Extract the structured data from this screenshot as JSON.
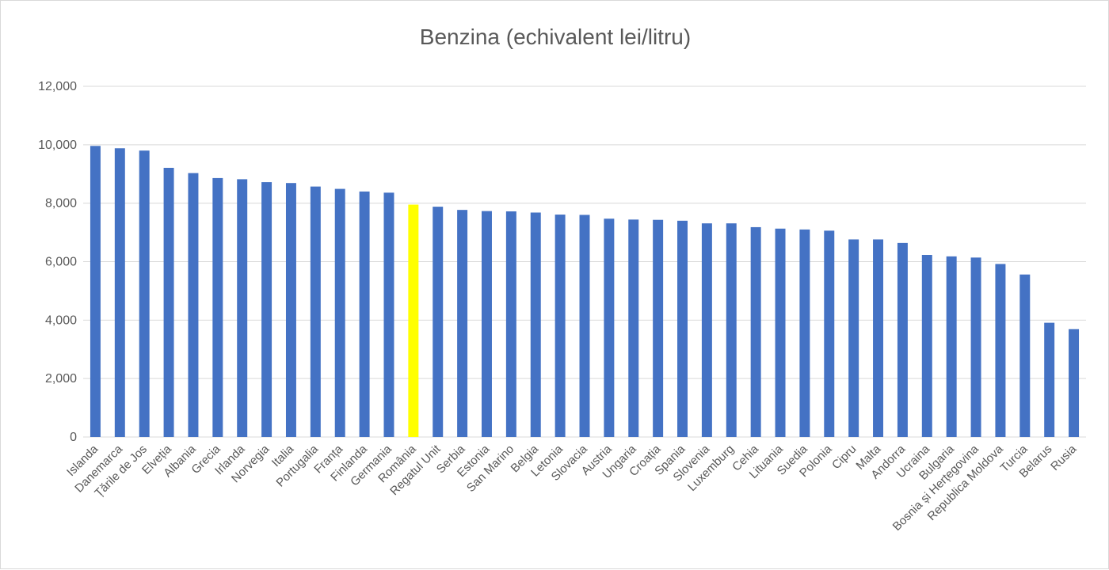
{
  "chart_data": {
    "type": "bar",
    "title": "Benzina (echivalent lei/litru)",
    "xlabel": "",
    "ylabel": "",
    "ylim": [
      0,
      12000
    ],
    "yticks": [
      "0",
      "2,000",
      "4,000",
      "6,000",
      "8,000",
      "10,000",
      "12,000"
    ],
    "grid": true,
    "legend": "none",
    "colors": {
      "bar": "#4472c4",
      "highlight": "#ffff00",
      "grid": "#d9d9d9",
      "text": "#595959"
    },
    "highlight_category": "România",
    "categories": [
      "Islanda",
      "Danemarca",
      "Țările de Jos",
      "Elveția",
      "Albania",
      "Grecia",
      "Irlanda",
      "Norvegia",
      "Italia",
      "Portugalia",
      "Franța",
      "Finlanda",
      "Germania",
      "România",
      "Regatul Unit",
      "Serbia",
      "Estonia",
      "San Marino",
      "Belgia",
      "Letonia",
      "Slovacia",
      "Austria",
      "Ungaria",
      "Croația",
      "Spania",
      "Slovenia",
      "Luxemburg",
      "Cehia",
      "Lituania",
      "Suedia",
      "Polonia",
      "Cipru",
      "Malta",
      "Andorra",
      "Ucraina",
      "Bulgaria",
      "Bosnia și Herțegovina",
      "Republica Moldova",
      "Turcia",
      "Belarus",
      "Rusia"
    ],
    "values": [
      9960,
      9880,
      9800,
      9210,
      9030,
      8860,
      8820,
      8720,
      8690,
      8570,
      8490,
      8400,
      8360,
      7950,
      7880,
      7770,
      7730,
      7720,
      7680,
      7610,
      7600,
      7470,
      7440,
      7430,
      7400,
      7310,
      7310,
      7180,
      7130,
      7100,
      7060,
      6760,
      6760,
      6640,
      6230,
      6180,
      6140,
      5920,
      5560,
      3910,
      3690
    ]
  }
}
